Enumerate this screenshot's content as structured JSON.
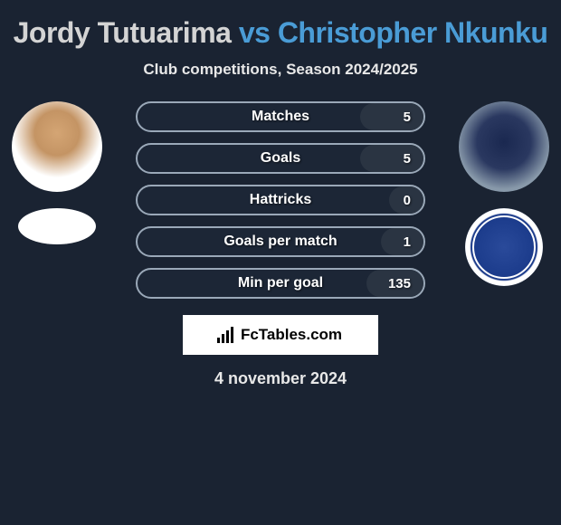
{
  "title": {
    "player1": "Jordy Tutuarima",
    "vs": "vs",
    "player2": "Christopher Nkunku"
  },
  "subtitle": "Club competitions, Season 2024/2025",
  "stats": [
    {
      "label": "Matches",
      "value": "5",
      "fill_pct": 22
    },
    {
      "label": "Goals",
      "value": "5",
      "fill_pct": 22
    },
    {
      "label": "Hattricks",
      "value": "0",
      "fill_pct": 12
    },
    {
      "label": "Goals per match",
      "value": "1",
      "fill_pct": 15
    },
    {
      "label": "Min per goal",
      "value": "135",
      "fill_pct": 20
    }
  ],
  "brand": "FcTables.com",
  "date": "4 november 2024",
  "colors": {
    "background": "#1a2332",
    "accent": "#4a9cd6",
    "text_light": "#e8e8e8",
    "bar_border": "#9aa8b8",
    "bar_fill": "#2a3442"
  }
}
